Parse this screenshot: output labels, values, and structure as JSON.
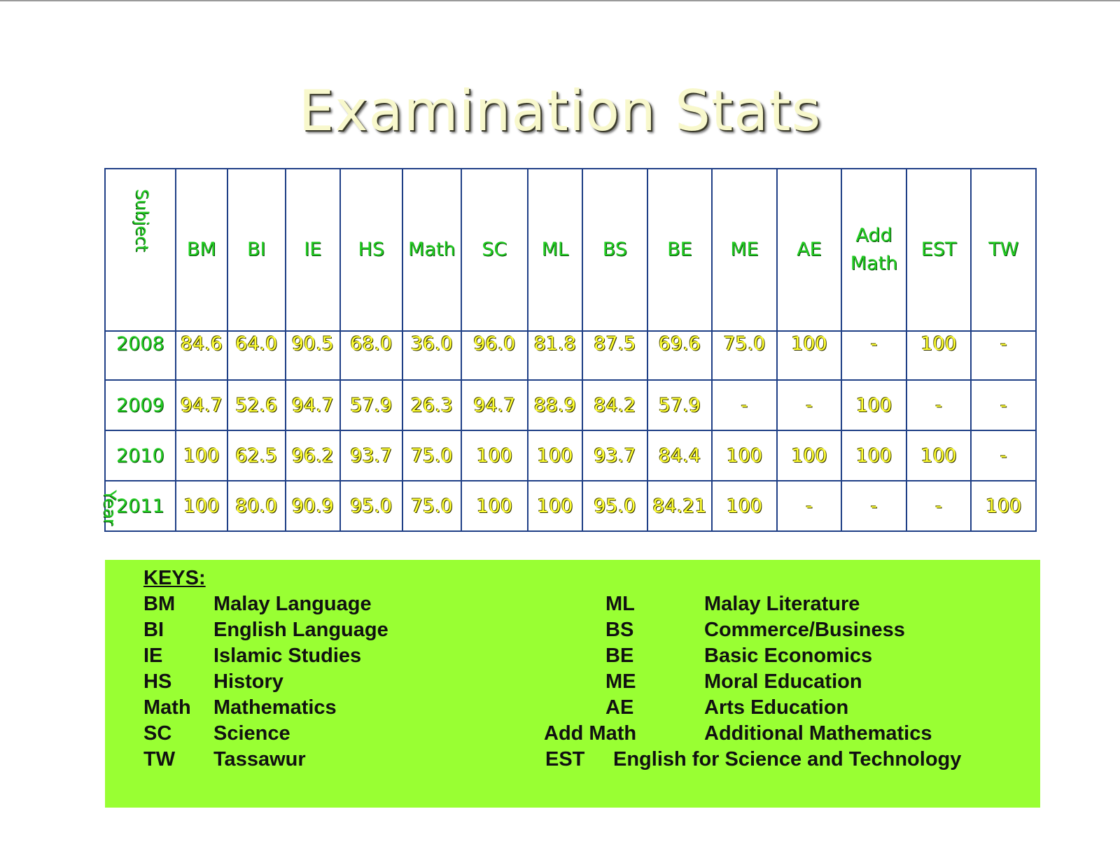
{
  "title": "Examination Stats",
  "table": {
    "corner": {
      "subject": "Subject",
      "year": "Year"
    },
    "headers": [
      "BM",
      "BI",
      "IE",
      "HS",
      "Math",
      "SC",
      "ML",
      "BS",
      "BE",
      "ME",
      "AE",
      "Add Math",
      "EST",
      "TW"
    ],
    "rows": [
      {
        "year": "2008",
        "values": [
          "84.6",
          "64.0",
          "90.5",
          "68.0",
          "36.0",
          "96.0",
          "81.8",
          "87.5",
          "69.6",
          "75.0",
          "100",
          "-",
          "100",
          "-"
        ]
      },
      {
        "year": "2009",
        "values": [
          "94.7",
          "52.6",
          "94.7",
          "57.9",
          "26.3",
          "94.7",
          "88.9",
          "84.2",
          "57.9",
          "-",
          "-",
          "100",
          "-",
          "-"
        ]
      },
      {
        "year": "2010",
        "values": [
          "100",
          "62.5",
          "96.2",
          "93.7",
          "75.0",
          "100",
          "100",
          "93.7",
          "84.4",
          "100",
          "100",
          "100",
          "100",
          "-"
        ]
      },
      {
        "year": "2011",
        "values": [
          "100",
          "80.0",
          "90.9",
          "95.0",
          "75.0",
          "100",
          "100",
          "95.0",
          "84.21",
          "100",
          "-",
          "-",
          "-",
          "100"
        ]
      }
    ]
  },
  "keys": {
    "heading": "KEYS:",
    "left": [
      {
        "abbr": "BM",
        "meaning": "Malay Language"
      },
      {
        "abbr": "BI",
        "meaning": "English Language"
      },
      {
        "abbr": "IE",
        "meaning": "Islamic Studies"
      },
      {
        "abbr": "HS",
        "meaning": "History"
      },
      {
        "abbr": "Math",
        "meaning": "Mathematics"
      },
      {
        "abbr": "SC",
        "meaning": "Science"
      },
      {
        "abbr": "TW",
        "meaning": "Tassawur"
      }
    ],
    "right": [
      {
        "abbr": "ML",
        "meaning": "Malay Literature"
      },
      {
        "abbr": "BS",
        "meaning": "Commerce/Business"
      },
      {
        "abbr": "BE",
        "meaning": "Basic Economics"
      },
      {
        "abbr": "ME",
        "meaning": "Moral Education"
      },
      {
        "abbr": "AE",
        "meaning": "Arts Education"
      },
      {
        "abbr": "Add Math",
        "meaning": "Additional Mathematics"
      },
      {
        "abbr": "EST",
        "meaning": "English for Science and Technology"
      }
    ]
  }
}
